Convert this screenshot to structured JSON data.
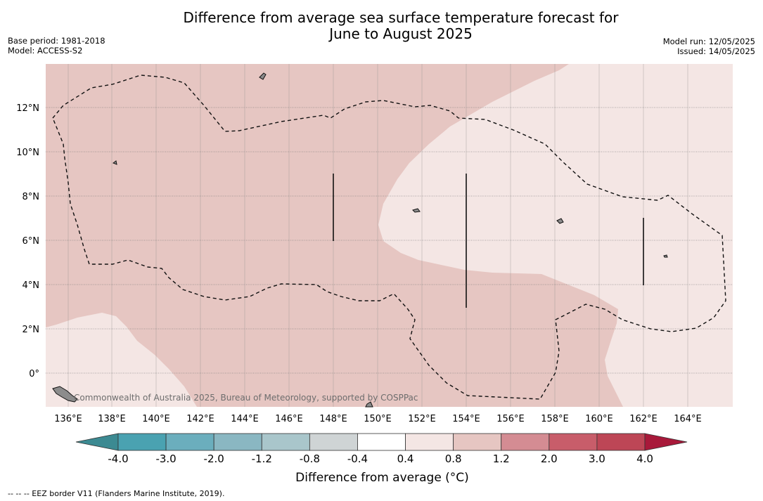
{
  "title_line1": "Difference from average sea surface temperature forecast for",
  "title_line2": "June to August 2025",
  "meta_left": {
    "base_period": "Base period: 1981-2018",
    "model": "Model: ACCESS-S2"
  },
  "meta_right": {
    "model_run": "Model run: 12/05/2025",
    "issued": "Issued: 14/05/2025"
  },
  "credit": "Commonwealth of Australia 2025, Bureau of Meteorology, supported by COSPPac",
  "footnote": "--  --  -- EEZ border V11 (Flanders Marine Institute, 2019).",
  "map": {
    "lon_range": [
      135,
      166
    ],
    "lat_range": [
      -1.5,
      14
    ],
    "lon_ticks": [
      "136°E",
      "138°E",
      "140°E",
      "142°E",
      "144°E",
      "146°E",
      "148°E",
      "150°E",
      "152°E",
      "154°E",
      "156°E",
      "158°E",
      "160°E",
      "162°E",
      "164°E"
    ],
    "lat_ticks": [
      "0°",
      "2°N",
      "4°N",
      "6°N",
      "8°N",
      "10°N",
      "12°N"
    ],
    "colors": {
      "anomaly_0_4_to_0_8": "#f4e6e4",
      "anomaly_0_8_to_1_2": "#e6c6c2",
      "land": "#8c8c8c"
    }
  },
  "colorbar": {
    "title": "Difference from average (°C)",
    "tick_labels": [
      "-4.0",
      "-3.0",
      "-2.0",
      "-1.2",
      "-0.8",
      "-0.4",
      "0.4",
      "0.8",
      "1.2",
      "2.0",
      "3.0",
      "4.0"
    ],
    "colors": [
      "#3c8a92",
      "#4aa2b1",
      "#6baebd",
      "#8ab7c2",
      "#a9c6cb",
      "#cfd4d5",
      "#ffffff",
      "#f4e6e4",
      "#e6c6c2",
      "#d48c93",
      "#c85d6a",
      "#bd4656",
      "#a8193a"
    ]
  }
}
